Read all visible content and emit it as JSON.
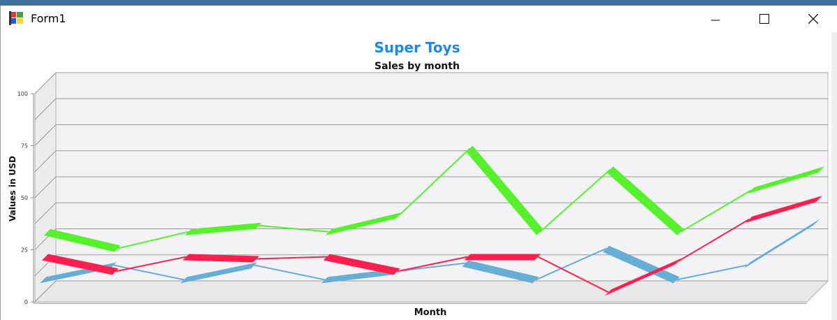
{
  "window": {
    "title": "Form1",
    "icons": {
      "app": "app-logo-icon",
      "minimize": "minimize-icon",
      "maximize": "maximize-icon",
      "close": "close-icon"
    }
  },
  "chart_data": {
    "type": "line",
    "title": "Super Toys",
    "subtitle": "Sales by month",
    "xlabel": "Month",
    "ylabel": "Values in USD",
    "ylim": [
      0,
      100
    ],
    "yticks": [
      "0",
      "25",
      "50",
      "75",
      "100"
    ],
    "categories": [
      "",
      "",
      "",
      "",
      "",
      "",
      "",
      "",
      "",
      "",
      "",
      ""
    ],
    "grid": true,
    "three_d": true,
    "colors": {
      "title": "#1e88e5",
      "series": [
        "#66aed6",
        "#ff1f4f",
        "#55f22b"
      ],
      "wall": "#f3f3f5"
    },
    "series": [
      {
        "values": [
          20,
          27,
          20,
          27,
          20,
          24,
          28,
          20,
          35,
          20,
          27,
          48
        ]
      },
      {
        "values": [
          27,
          20,
          27,
          26,
          27,
          20,
          27,
          27,
          10,
          25,
          45,
          55
        ]
      },
      {
        "values": [
          35,
          27,
          35,
          38,
          35,
          43,
          75,
          35,
          65,
          35,
          55,
          65
        ]
      }
    ]
  }
}
